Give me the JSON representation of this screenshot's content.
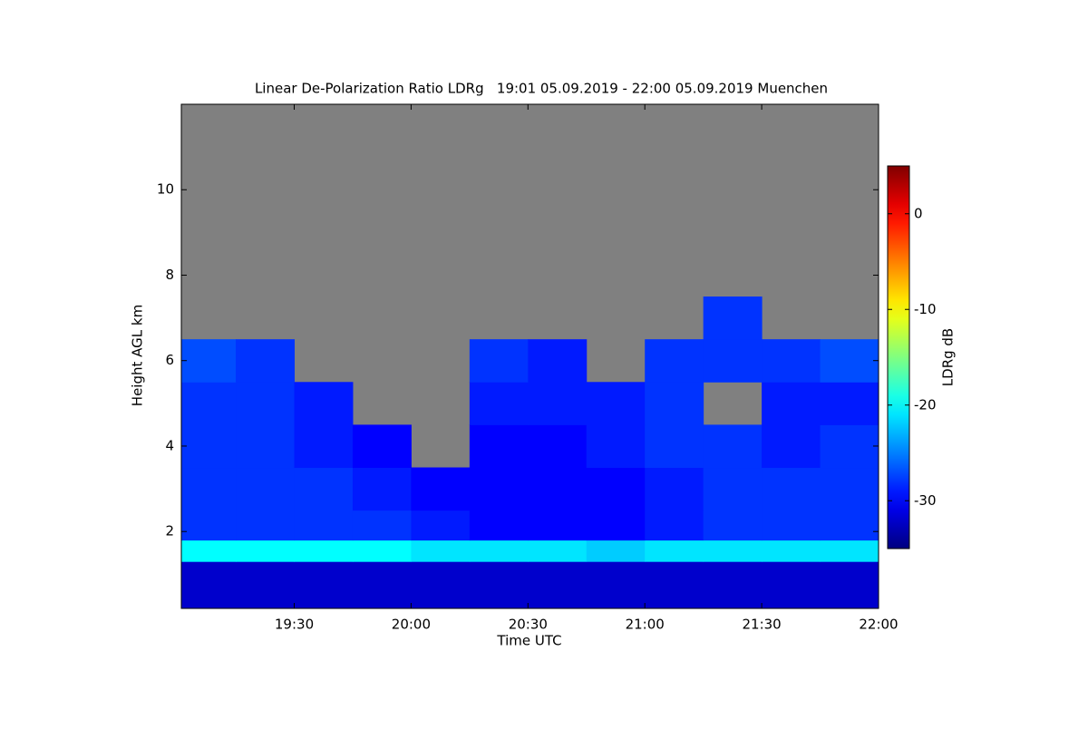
{
  "chart_data": {
    "type": "heatmap",
    "title": "Linear De-Polarization Ratio LDRg   19:01 05.09.2019 - 22:00 05.09.2019 Muenchen",
    "xlabel": "Time UTC",
    "ylabel": "Height AGL km",
    "xlim": [
      19.017,
      22.0
    ],
    "xticks": [
      {
        "value": 19.5,
        "label": "19:30"
      },
      {
        "value": 20.0,
        "label": "20:00"
      },
      {
        "value": 20.5,
        "label": "20:30"
      },
      {
        "value": 21.0,
        "label": "21:00"
      },
      {
        "value": 21.5,
        "label": "21:30"
      },
      {
        "value": 22.0,
        "label": "22:00"
      }
    ],
    "ylim": [
      0.2,
      12
    ],
    "yticks": [
      2,
      4,
      6,
      8,
      10
    ],
    "no_data_color": "#808080",
    "x_edges": [
      19.017,
      19.25,
      19.5,
      19.75,
      20.0,
      20.25,
      20.5,
      20.75,
      21.0,
      21.25,
      21.5,
      21.75,
      22.0
    ],
    "y_edges": [
      0.2,
      1.3,
      1.8,
      2.5,
      3.5,
      4.5,
      5.5,
      6.5,
      7.5,
      12
    ],
    "z": [
      [
        -32,
        -32,
        -32,
        -32,
        -32,
        -32,
        -32,
        -32,
        -32,
        -32,
        -32,
        -32
      ],
      [
        -20,
        -20,
        -20,
        -20,
        -21,
        -21,
        -21,
        -22,
        -21,
        -21,
        -21,
        -21
      ],
      [
        -28,
        -28,
        -28,
        -28,
        -29,
        -30,
        -30,
        -30,
        -29,
        -28,
        -28,
        -28
      ],
      [
        -28,
        -28,
        -28,
        -29,
        -30,
        -30,
        -30,
        -30,
        -29,
        -28,
        -28,
        -28
      ],
      [
        -28,
        -28,
        -29,
        -30,
        null,
        -30,
        -30,
        -29,
        -28,
        -28,
        -29,
        -28
      ],
      [
        -28,
        -28,
        -29,
        null,
        null,
        -29,
        -29,
        -29,
        -28,
        null,
        -29,
        -29
      ],
      [
        -27,
        -28,
        null,
        null,
        null,
        -28,
        -29,
        null,
        -28,
        -28,
        -28,
        -27
      ],
      [
        null,
        null,
        null,
        null,
        null,
        null,
        null,
        null,
        null,
        -28,
        null,
        null
      ],
      [
        null,
        null,
        null,
        null,
        null,
        null,
        null,
        null,
        null,
        null,
        null,
        null
      ]
    ],
    "colorbar": {
      "label": "LDRg dB",
      "clim": [
        -35,
        5
      ],
      "ticks": [
        -30,
        -20,
        -10,
        0
      ],
      "colormap": "jet"
    }
  }
}
